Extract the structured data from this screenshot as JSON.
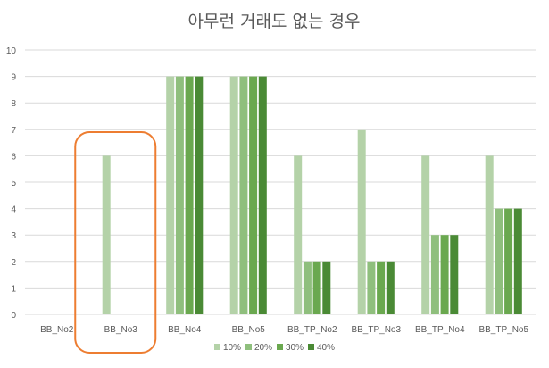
{
  "chart_data": {
    "type": "bar",
    "title": "아무런 거래도 없는 경우",
    "categories": [
      "BB_No2",
      "BB_No3",
      "BB_No4",
      "BB_No5",
      "BB_TP_No2",
      "BB_TP_No3",
      "BB_TP_No4",
      "BB_TP_No5"
    ],
    "series": [
      {
        "name": "10%",
        "color": "#b4d2a8",
        "values": [
          0,
          6,
          9,
          9,
          6,
          7,
          6,
          6
        ]
      },
      {
        "name": "20%",
        "color": "#8fbf7d",
        "values": [
          0,
          0,
          9,
          9,
          2,
          2,
          3,
          4
        ]
      },
      {
        "name": "30%",
        "color": "#6aa84f",
        "values": [
          0,
          0,
          9,
          9,
          2,
          2,
          3,
          4
        ]
      },
      {
        "name": "40%",
        "color": "#4a8a35",
        "values": [
          0,
          0,
          9,
          9,
          2,
          2,
          3,
          4
        ]
      }
    ],
    "yticks": [
      "0",
      "1",
      "2",
      "3",
      "4",
      "5",
      "6",
      "7",
      "8",
      "9",
      "10"
    ],
    "ylim": [
      0,
      10
    ],
    "grid": true,
    "legend_position": "bottom",
    "highlight": {
      "category": "BB_No3",
      "color": "#ed7d31"
    },
    "gridline_color": "#d9d9d9"
  }
}
